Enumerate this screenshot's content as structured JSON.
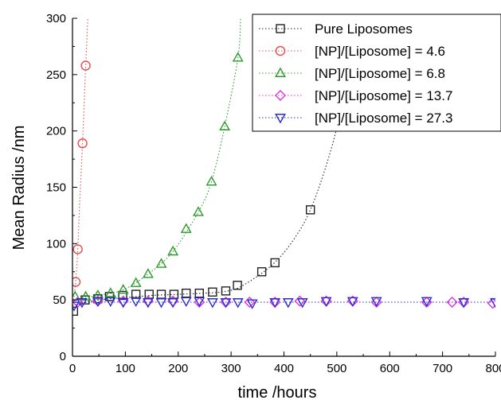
{
  "chart_data": {
    "type": "scatter",
    "xlabel": "time /hours",
    "ylabel": "Mean Radius /nm",
    "xlim": [
      0,
      800
    ],
    "ylim": [
      0,
      300
    ],
    "x_ticks": [
      0,
      100,
      200,
      300,
      400,
      500,
      600,
      700,
      800
    ],
    "y_ticks": [
      0,
      50,
      100,
      150,
      200,
      250,
      300
    ],
    "grid": false,
    "legend_position": "top-right",
    "series": [
      {
        "name": "Pure Liposomes",
        "marker": "square",
        "color": "#222222",
        "x": [
          2,
          24,
          48,
          70,
          95,
          120,
          145,
          168,
          192,
          215,
          240,
          265,
          290,
          312,
          358,
          383,
          450
        ],
        "y": [
          40,
          50,
          51,
          53,
          54,
          55,
          55,
          55,
          55,
          56,
          56,
          57,
          58,
          63,
          75,
          83,
          130
        ],
        "curve_x": [
          0,
          50,
          100,
          150,
          200,
          250,
          280,
          310,
          340,
          370,
          400,
          430,
          450,
          470,
          490,
          505,
          515
        ],
        "curve_y": [
          45,
          50,
          52,
          54,
          55,
          56,
          57,
          60,
          68,
          78,
          92,
          112,
          130,
          155,
          185,
          212,
          230
        ]
      },
      {
        "name": "[NP]/[Liposome] = 4.6",
        "marker": "circle",
        "color": "#e05050",
        "x": [
          6,
          10,
          19,
          25
        ],
        "y": [
          66,
          95,
          189,
          258
        ],
        "curve_x": [
          2,
          6,
          10,
          14,
          19,
          25,
          29
        ],
        "curve_y": [
          50,
          66,
          95,
          140,
          189,
          258,
          300
        ]
      },
      {
        "name": "[NP]/[Liposome] = 6.8",
        "marker": "triangle-up",
        "color": "#2a9a2a",
        "x": [
          5,
          25,
          48,
          72,
          96,
          120,
          143,
          168,
          190,
          215,
          238,
          263,
          288,
          313
        ],
        "y": [
          53,
          53,
          54,
          56,
          59,
          65,
          73,
          82,
          93,
          113,
          128,
          155,
          204,
          265
        ],
        "curve_x": [
          0,
          48,
          96,
          143,
          190,
          238,
          263,
          288,
          313,
          318
        ],
        "curve_y": [
          50,
          54,
          59,
          73,
          93,
          128,
          155,
          204,
          265,
          300
        ]
      },
      {
        "name": "[NP]/[Liposome] = 13.7",
        "marker": "diamond",
        "color": "#dd33dd",
        "x": [
          10,
          48,
          96,
          143,
          190,
          240,
          290,
          335,
          383,
          430,
          480,
          530,
          575,
          670,
          718,
          740,
          795
        ],
        "y": [
          48,
          49,
          49,
          49,
          49,
          48,
          48,
          48,
          48,
          49,
          49,
          49,
          48,
          48,
          48,
          48,
          47
        ],
        "curve_x": [
          0,
          800
        ],
        "curve_y": [
          48,
          48
        ]
      },
      {
        "name": "[NP]/[Liposome] = 27.3",
        "marker": "triangle-down",
        "color": "#2a2ad0",
        "x": [
          3,
          18,
          48,
          72,
          96,
          120,
          143,
          168,
          190,
          215,
          240,
          265,
          290,
          313,
          340,
          383,
          408,
          435,
          480,
          530,
          575,
          670,
          740,
          800
        ],
        "y": [
          45,
          48,
          49,
          49,
          48,
          49,
          48,
          48,
          48,
          49,
          49,
          48,
          48,
          48,
          47,
          48,
          48,
          48,
          49,
          49,
          49,
          49,
          48,
          48
        ],
        "curve_x": [
          0,
          800
        ],
        "curve_y": [
          48,
          48
        ]
      }
    ]
  }
}
